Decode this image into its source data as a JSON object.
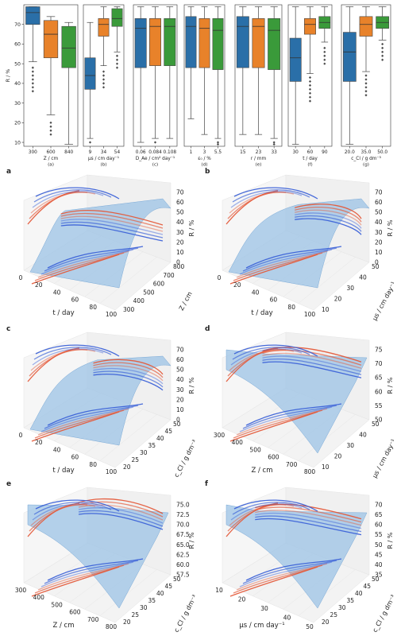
{
  "figure_label": "",
  "colors": {
    "blue": "#2a6fa8",
    "orange": "#e8822a",
    "green": "#3a9a3a",
    "flier": "#4a4a4a",
    "surface": "#9cc3e6",
    "curve_red": "#e45a3a",
    "curve_blue": "#3c62d8"
  },
  "chart_data": [
    {
      "type": "box",
      "panel": "(a)",
      "ylabel": "R / %",
      "xlabel": "Z / cm",
      "categories": [
        "300",
        "600",
        "840"
      ],
      "ylim": [
        8,
        80
      ],
      "yticks": [
        10,
        20,
        30,
        40,
        50,
        60,
        70
      ],
      "boxes": [
        {
          "q1": 70,
          "median": 76,
          "q3": 79,
          "whislo": 51,
          "whishi": 79,
          "fliers": [
            48,
            46,
            44,
            42,
            40,
            38,
            36
          ]
        },
        {
          "q1": 53,
          "median": 65,
          "q3": 72,
          "whislo": 24,
          "whishi": 74,
          "fliers": [
            20,
            18,
            16,
            14
          ]
        },
        {
          "q1": 48,
          "median": 58,
          "q3": 69,
          "whislo": 9,
          "whishi": 71,
          "fliers": []
        }
      ]
    },
    {
      "type": "box",
      "panel": "(b)",
      "xlabel": "μs / cm day⁻¹",
      "categories": [
        "9",
        "34",
        "54"
      ],
      "ylim": [
        8,
        80
      ],
      "boxes": [
        {
          "q1": 37,
          "median": 44,
          "q3": 53,
          "whislo": 12,
          "whishi": 71,
          "fliers": [
            10
          ]
        },
        {
          "q1": 64,
          "median": 70,
          "q3": 73,
          "whislo": 49,
          "whishi": 79,
          "fliers": [
            46,
            44,
            42,
            40,
            38
          ]
        },
        {
          "q1": 69,
          "median": 73,
          "q3": 78,
          "whislo": 56,
          "whishi": 79,
          "fliers": [
            54,
            52,
            50,
            48
          ]
        }
      ]
    },
    {
      "type": "box",
      "panel": "(c)",
      "xlabel": "D_Ae / cm² day⁻¹",
      "categories": [
        "0.06",
        "0.084",
        "0.108"
      ],
      "ylim": [
        8,
        80
      ],
      "boxes": [
        {
          "q1": 48,
          "median": 68,
          "q3": 73,
          "whislo": 10,
          "whishi": 79,
          "fliers": []
        },
        {
          "q1": 49,
          "median": 69,
          "q3": 73,
          "whislo": 12,
          "whishi": 79,
          "fliers": [
            10
          ]
        },
        {
          "q1": 49,
          "median": 69,
          "q3": 73,
          "whislo": 12,
          "whishi": 79,
          "fliers": []
        }
      ]
    },
    {
      "type": "box",
      "panel": "(d)",
      "xlabel": "ε₀ / %",
      "categories": [
        "1",
        "3",
        "5.5"
      ],
      "ylim": [
        8,
        80
      ],
      "boxes": [
        {
          "q1": 48,
          "median": 69,
          "q3": 74,
          "whislo": 22,
          "whishi": 79,
          "fliers": []
        },
        {
          "q1": 48,
          "median": 68,
          "q3": 73,
          "whislo": 14,
          "whishi": 79,
          "fliers": []
        },
        {
          "q1": 47,
          "median": 67,
          "q3": 73,
          "whislo": 12,
          "whishi": 79,
          "fliers": [
            10,
            9
          ]
        }
      ]
    },
    {
      "type": "box",
      "panel": "(e)",
      "xlabel": "r / mm",
      "categories": [
        "15",
        "23",
        "33"
      ],
      "ylim": [
        8,
        80
      ],
      "boxes": [
        {
          "q1": 48,
          "median": 69,
          "q3": 74,
          "whislo": 14,
          "whishi": 79,
          "fliers": []
        },
        {
          "q1": 48,
          "median": 69,
          "q3": 73,
          "whislo": 14,
          "whishi": 79,
          "fliers": []
        },
        {
          "q1": 47,
          "median": 67,
          "q3": 73,
          "whislo": 12,
          "whishi": 79,
          "fliers": [
            10,
            9
          ]
        }
      ]
    },
    {
      "type": "box",
      "panel": "(f)",
      "xlabel": "t / day",
      "categories": [
        "30",
        "60",
        "90"
      ],
      "ylim": [
        8,
        80
      ],
      "boxes": [
        {
          "q1": 41,
          "median": 53,
          "q3": 63,
          "whislo": 9,
          "whishi": 79,
          "fliers": []
        },
        {
          "q1": 65,
          "median": 70,
          "q3": 73,
          "whislo": 45,
          "whishi": 79,
          "fliers": [
            43,
            41,
            39,
            37,
            35,
            33,
            31
          ]
        },
        {
          "q1": 68,
          "median": 71,
          "q3": 74,
          "whislo": 61,
          "whishi": 79,
          "fliers": [
            58,
            56,
            54,
            52,
            50
          ]
        }
      ]
    },
    {
      "type": "box",
      "panel": "(g)",
      "xlabel": "c_Cl / g dm⁻³",
      "categories": [
        "20.0",
        "35.0",
        "50.0"
      ],
      "ylim": [
        8,
        80
      ],
      "boxes": [
        {
          "q1": 41,
          "median": 56,
          "q3": 66,
          "whislo": 9,
          "whishi": 79,
          "fliers": []
        },
        {
          "q1": 64,
          "median": 70,
          "q3": 74,
          "whislo": 46,
          "whishi": 79,
          "fliers": [
            44,
            42,
            40,
            38,
            36,
            34
          ]
        },
        {
          "q1": 68,
          "median": 71,
          "q3": 74,
          "whislo": 62,
          "whishi": 79,
          "fliers": [
            60,
            58,
            56,
            54,
            52
          ]
        }
      ]
    },
    {
      "type": "surface3d",
      "panel": "a",
      "xlabel": "t / day",
      "ylabel": "Z / cm",
      "zlabel": "R / %",
      "xticks": [
        "0",
        "20",
        "40",
        "60",
        "80",
        "100"
      ],
      "yticks": [
        "300",
        "400",
        "500",
        "600",
        "700",
        "800"
      ],
      "zticks": [
        "0",
        "10",
        "20",
        "30",
        "40",
        "50",
        "60",
        "70"
      ]
    },
    {
      "type": "surface3d",
      "panel": "b",
      "xlabel": "t / day",
      "ylabel": "μs / cm day⁻¹",
      "zlabel": "R / %",
      "xticks": [
        "0",
        "20",
        "40",
        "60",
        "80",
        "100"
      ],
      "yticks": [
        "10",
        "20",
        "30",
        "40",
        "50"
      ],
      "zticks": [
        "0",
        "10",
        "20",
        "30",
        "40",
        "50",
        "60",
        "70"
      ]
    },
    {
      "type": "surface3d",
      "panel": "c",
      "xlabel": "t / day",
      "ylabel": "c_Cl / g dm⁻³",
      "zlabel": "R / %",
      "xticks": [
        "0",
        "20",
        "40",
        "60",
        "80",
        "100"
      ],
      "yticks": [
        "20",
        "25",
        "30",
        "35",
        "40",
        "45",
        "50"
      ],
      "zticks": [
        "0",
        "10",
        "20",
        "30",
        "40",
        "50",
        "60",
        "70"
      ]
    },
    {
      "type": "surface3d",
      "panel": "d",
      "xlabel": "Z / cm",
      "ylabel": "μs / cm day⁻¹",
      "zlabel": "R / %",
      "xticks": [
        "300",
        "400",
        "500",
        "600",
        "700",
        "800"
      ],
      "yticks": [
        "10",
        "20",
        "30",
        "40",
        "50"
      ],
      "zticks": [
        "50",
        "55",
        "60",
        "65",
        "70",
        "75"
      ]
    },
    {
      "type": "surface3d",
      "panel": "e",
      "xlabel": "Z / cm",
      "ylabel": "c_Cl / g dm⁻³",
      "zlabel": "R / %",
      "xticks": [
        "300",
        "400",
        "500",
        "600",
        "700",
        "800"
      ],
      "yticks": [
        "20",
        "25",
        "30",
        "35",
        "40",
        "45",
        "50"
      ],
      "zticks": [
        "57.5",
        "60.0",
        "62.5",
        "65.0",
        "67.5",
        "70.0",
        "72.5",
        "75.0"
      ]
    },
    {
      "type": "surface3d",
      "panel": "f",
      "xlabel": "μs / cm day⁻¹",
      "ylabel": "c_Cl / g dm⁻³",
      "zlabel": "R / %",
      "xticks": [
        "10",
        "20",
        "30",
        "40",
        "50"
      ],
      "yticks": [
        "20",
        "25",
        "30",
        "35",
        "40",
        "45",
        "50"
      ],
      "zticks": [
        "35",
        "40",
        "45",
        "50",
        "55",
        "60",
        "65",
        "70"
      ]
    }
  ]
}
